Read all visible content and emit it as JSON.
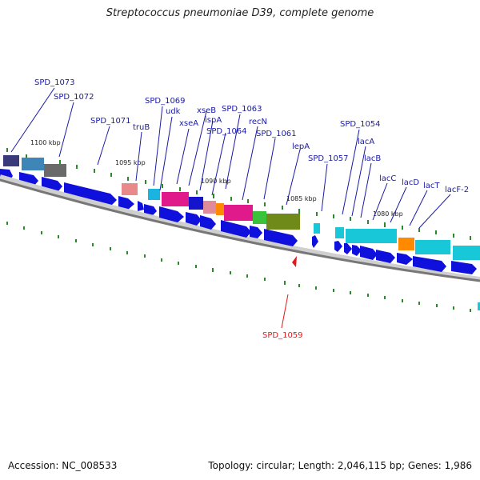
{
  "title": "Streptococcus pneumoniae D39, complete genome",
  "footer": {
    "accession": "Accession: NC_008533",
    "topology": "Topology: circular; Length: 2,046,115 bp; Genes: 1,986"
  },
  "ticks": [
    "1100 kbp",
    "1095 kbp",
    "1090 kbp",
    "1085 kbp",
    "1080 kbp"
  ],
  "gene_labels": [
    {
      "text": "SPD_1073",
      "color": "#1a1aa8"
    },
    {
      "text": "SPD_1072",
      "color": "#1a1aa8"
    },
    {
      "text": "SPD_1071",
      "color": "#1a1aa8"
    },
    {
      "text": "truB",
      "color": "#1a1aa8"
    },
    {
      "text": "SPD_1069",
      "color": "#1a1aa8"
    },
    {
      "text": "udk",
      "color": "#1a1aa8"
    },
    {
      "text": "xseA",
      "color": "#1a1aa8"
    },
    {
      "text": "xseB",
      "color": "#1a1aa8"
    },
    {
      "text": "ispA",
      "color": "#1a1aa8"
    },
    {
      "text": "SPD_1064",
      "color": "#1a1aa8"
    },
    {
      "text": "SPD_1063",
      "color": "#1a1aa8"
    },
    {
      "text": "recN",
      "color": "#1a1aa8"
    },
    {
      "text": "SPD_1061",
      "color": "#1a1aa8"
    },
    {
      "text": "lepA",
      "color": "#1a1aa8"
    },
    {
      "text": "SPD_1057",
      "color": "#1a1aa8"
    },
    {
      "text": "SPD_1054",
      "color": "#1a1aa8"
    },
    {
      "text": "lacA",
      "color": "#1a1aa8"
    },
    {
      "text": "lacB",
      "color": "#1a1aa8"
    },
    {
      "text": "lacC",
      "color": "#1a1aa8"
    },
    {
      "text": "lacD",
      "color": "#1a1aa8"
    },
    {
      "text": "lacT",
      "color": "#1a1aa8"
    },
    {
      "text": "lacF-2",
      "color": "#1a1aa8"
    },
    {
      "text": "SPD_1059",
      "color": "#e01818"
    }
  ],
  "colors": {
    "label": "#1a1aa8",
    "highlight": "#e01818",
    "gene_arrow": "#1010dd",
    "backbone": "#777777",
    "tick": "#2a8a2a"
  }
}
